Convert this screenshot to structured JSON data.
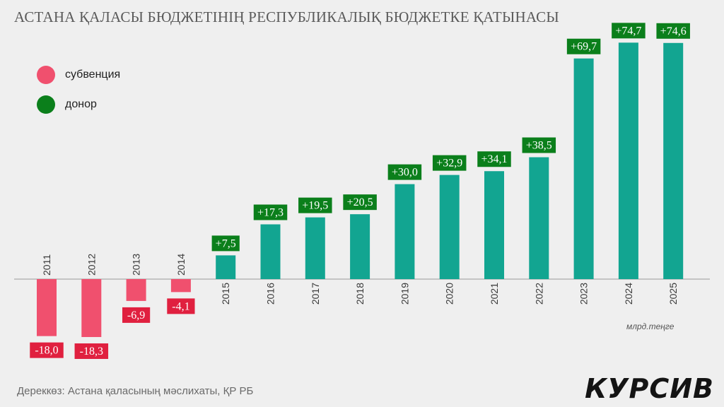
{
  "title": "АСТАНА ҚАЛАСЫ БЮДЖЕТІНІҢ РЕСПУБЛИКАЛЫҚ БЮДЖЕТКЕ ҚАТЫНАСЫ",
  "legend": [
    {
      "label": "субвенция",
      "color": "#f0506e"
    },
    {
      "label": "донор",
      "color": "#0b7f1b"
    }
  ],
  "unit": "млрд.теңге",
  "source": "Дереккөз: Астана қаласының мәслихаты, ҚР РБ",
  "brand": "КУРСИВ",
  "colors": {
    "negative_bar": "#f0506e",
    "negative_label": "#e0203f",
    "positive_bar": "#12a591",
    "positive_label": "#0b7f1b"
  },
  "chart_data": {
    "type": "bar",
    "categories": [
      "2011",
      "2012",
      "2013",
      "2014",
      "2015",
      "2016",
      "2017",
      "2018",
      "2019",
      "2020",
      "2021",
      "2022",
      "2023",
      "2024",
      "2025"
    ],
    "values": [
      -18.0,
      -18.3,
      -6.9,
      -4.1,
      7.5,
      17.3,
      19.5,
      20.5,
      30.0,
      32.9,
      34.1,
      38.5,
      69.7,
      74.7,
      74.6
    ],
    "data_labels": [
      "-18,0",
      "-18,3",
      "-6,9",
      "-4,1",
      "+7,5",
      "+17,3",
      "+19,5",
      "+20,5",
      "+30,0",
      "+32,9",
      "+34,1",
      "+38,5",
      "+69,7",
      "+74,7",
      "+74,6"
    ],
    "title": "АСТАНА ҚАЛАСЫ БЮДЖЕТІНІҢ РЕСПУБЛИКАЛЫҚ БЮДЖЕТКЕ ҚАТЫНАСЫ",
    "xlabel": "",
    "ylabel": "",
    "ylim": [
      -20,
      76
    ],
    "grid": false,
    "legend_position": "top-left"
  }
}
